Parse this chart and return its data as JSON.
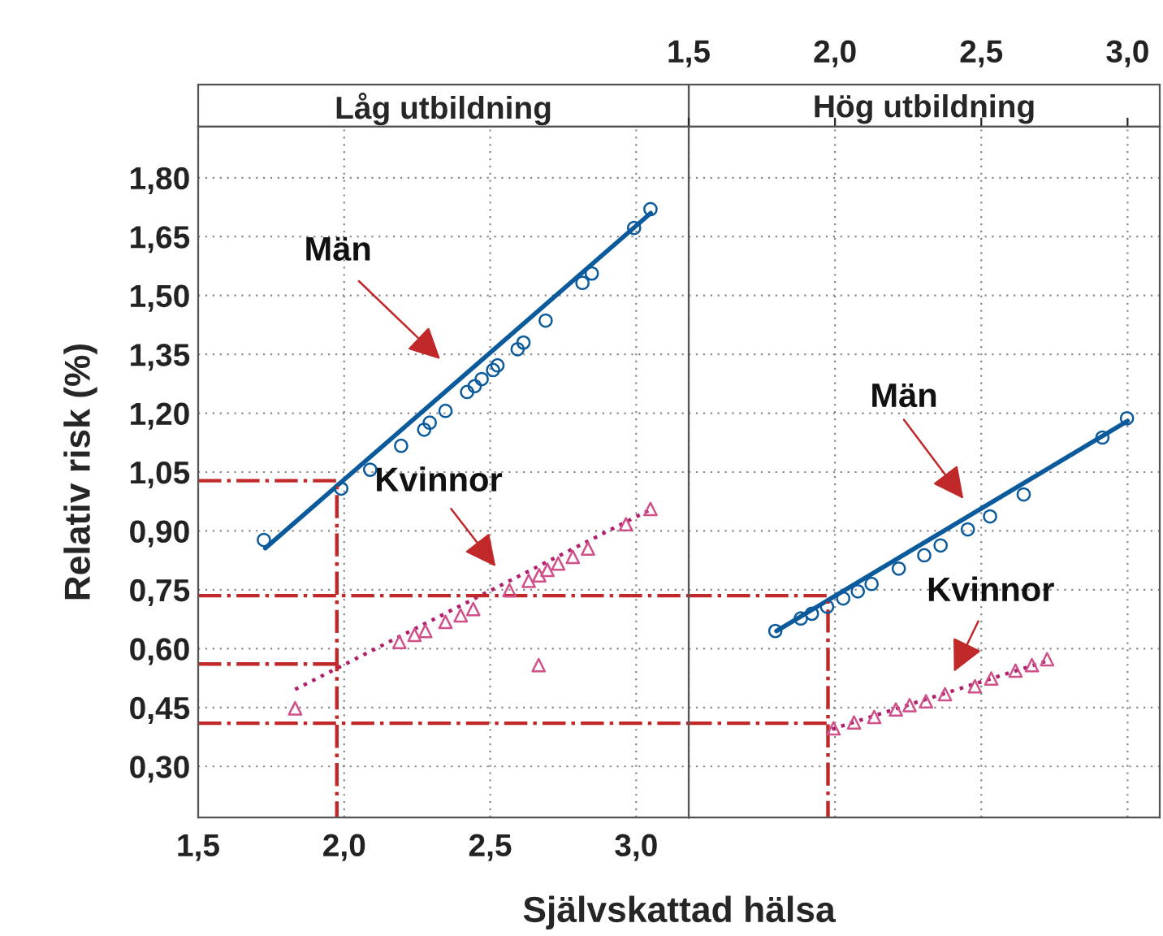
{
  "chart_data": [
    {
      "type": "line",
      "title": "Låg utbildning",
      "xlabel": "Självskattad hälsa",
      "ylabel": "Relativ risk (%)",
      "xlim": [
        1.5,
        3.18
      ],
      "xticks": [
        {
          "value": 1.5,
          "label": "1,5"
        },
        {
          "value": 2.0,
          "label": "2,0"
        },
        {
          "value": 2.5,
          "label": "2,5"
        },
        {
          "value": 3.0,
          "label": "3,0"
        }
      ],
      "ylim": [
        0.17,
        1.93
      ],
      "yticks": [
        {
          "value": 0.3,
          "label": "0,30"
        },
        {
          "value": 0.45,
          "label": "0,45"
        },
        {
          "value": 0.6,
          "label": "0,60"
        },
        {
          "value": 0.75,
          "label": "0,75"
        },
        {
          "value": 0.9,
          "label": "0,90"
        },
        {
          "value": 1.05,
          "label": "1,05"
        },
        {
          "value": 1.2,
          "label": "1,20"
        },
        {
          "value": 1.35,
          "label": "1,35"
        },
        {
          "value": 1.5,
          "label": "1,50"
        },
        {
          "value": 1.65,
          "label": "1,65"
        },
        {
          "value": 1.8,
          "label": "1,80"
        }
      ],
      "grid": true,
      "legend": false,
      "series": [
        {
          "type": "line",
          "color": "#0a5a9c",
          "line_style": "solid",
          "marker": "none",
          "x": [
            1.73,
            3.05
          ],
          "values": [
            0.856,
            1.71
          ]
        },
        {
          "type": "scatter",
          "color": "#0a5a9c",
          "marker": "circle",
          "x": [
            1.725,
            1.99,
            2.089,
            2.195,
            2.274,
            2.293,
            2.347,
            2.421,
            2.447,
            2.471,
            2.51,
            2.525,
            2.594,
            2.614,
            2.69,
            2.816,
            2.848,
            2.993,
            3.049
          ],
          "values": [
            0.877,
            1.008,
            1.056,
            1.117,
            1.158,
            1.176,
            1.206,
            1.254,
            1.269,
            1.287,
            1.31,
            1.322,
            1.363,
            1.38,
            1.436,
            1.532,
            1.556,
            1.672,
            1.72
          ]
        },
        {
          "type": "line",
          "color": "#b0206a",
          "line_style": "dotted",
          "marker": "none",
          "x": [
            1.832,
            3.05
          ],
          "values": [
            0.496,
            0.955
          ]
        },
        {
          "type": "scatter",
          "color": "#d0508a",
          "marker": "triangle",
          "x": [
            1.832,
            2.189,
            2.241,
            2.278,
            2.347,
            2.399,
            2.442,
            2.566,
            2.632,
            2.666,
            2.668,
            2.696,
            2.733,
            2.783,
            2.835,
            2.965,
            3.049
          ],
          "values": [
            0.448,
            0.617,
            0.635,
            0.645,
            0.668,
            0.685,
            0.701,
            0.749,
            0.773,
            0.558,
            0.787,
            0.801,
            0.817,
            0.834,
            0.855,
            0.917,
            0.956
          ]
        },
        {
          "type": "line",
          "color": "#c0282a",
          "line_style": "dashdot",
          "marker": "none",
          "x": [
            1.5,
            1.975,
            1.975
          ],
          "values": [
            1.028,
            1.028,
            0.17
          ]
        },
        {
          "type": "line",
          "color": "#c0282a",
          "line_style": "dashdot",
          "marker": "none",
          "x": [
            1.5,
            1.975
          ],
          "values": [
            0.561,
            0.561
          ]
        },
        {
          "type": "line",
          "color": "#c0282a",
          "line_style": "dashdot",
          "marker": "none",
          "x": [
            1.5,
            3.18
          ],
          "values": [
            0.735,
            0.735
          ]
        },
        {
          "type": "line",
          "color": "#c0282a",
          "line_style": "dashdot",
          "marker": "none",
          "x": [
            1.5,
            3.18
          ],
          "values": [
            0.41,
            0.41
          ]
        }
      ],
      "annotations": [
        "Män",
        "Kvinnor"
      ]
    },
    {
      "type": "line",
      "title": "Hög utbildning",
      "xlim": [
        1.5,
        3.11
      ],
      "xticks": [
        {
          "value": 1.5,
          "label": "1,5"
        },
        {
          "value": 2.0,
          "label": "2,0"
        },
        {
          "value": 2.5,
          "label": "2,5"
        },
        {
          "value": 3.0,
          "label": "3,0"
        }
      ],
      "ylim": [
        0.17,
        1.93
      ],
      "tick_labels": "x",
      "grid": true,
      "legend": false,
      "series": [
        {
          "type": "line",
          "color": "#0a5a9c",
          "line_style": "solid",
          "marker": "none",
          "x": [
            1.8,
            3.0
          ],
          "values": [
            0.645,
            1.18
          ]
        },
        {
          "type": "scatter",
          "color": "#0a5a9c",
          "marker": "circle",
          "x": [
            1.796,
            1.883,
            1.921,
            1.973,
            2.028,
            2.078,
            2.125,
            2.218,
            2.305,
            2.361,
            2.454,
            2.53,
            2.645,
            2.914,
            2.998
          ],
          "values": [
            0.645,
            0.677,
            0.689,
            0.707,
            0.728,
            0.746,
            0.765,
            0.804,
            0.838,
            0.863,
            0.904,
            0.937,
            0.993,
            1.138,
            1.187
          ]
        },
        {
          "type": "line",
          "color": "#b0206a",
          "line_style": "dotted",
          "marker": "none",
          "x": [
            1.99,
            2.73
          ],
          "values": [
            0.395,
            0.57
          ]
        },
        {
          "type": "scatter",
          "color": "#d0508a",
          "marker": "triangle",
          "x": [
            1.995,
            2.065,
            2.134,
            2.208,
            2.255,
            2.311,
            2.376,
            2.478,
            2.534,
            2.617,
            2.673,
            2.725
          ],
          "values": [
            0.397,
            0.412,
            0.426,
            0.445,
            0.456,
            0.466,
            0.484,
            0.504,
            0.524,
            0.544,
            0.558,
            0.573
          ]
        },
        {
          "type": "line",
          "color": "#c0282a",
          "line_style": "dashdot",
          "marker": "none",
          "x": [
            1.5,
            1.976,
            1.976
          ],
          "values": [
            0.735,
            0.735,
            0.17
          ]
        },
        {
          "type": "line",
          "color": "#c0282a",
          "line_style": "dashdot",
          "marker": "none",
          "x": [
            1.5,
            1.976
          ],
          "values": [
            0.41,
            0.41
          ]
        }
      ],
      "annotations": [
        "Män",
        "Kvinnor"
      ]
    }
  ]
}
